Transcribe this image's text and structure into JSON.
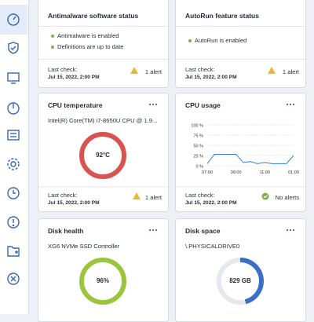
{
  "cards": [
    {
      "title": "Antimalware software status",
      "items": [
        "Antimalware is enabled",
        "Definitions are up to date"
      ],
      "footer": {
        "label": "Last check:",
        "date": "Jul 15, 2022, 2:00 PM",
        "status": "1 alert"
      }
    },
    {
      "title": "AutoRun feature status",
      "items": [
        "AutoRun is enabled"
      ],
      "footer": {
        "label": "Last check:",
        "date": "Jul 15, 2022, 2:00 PM",
        "status": "1 alert"
      }
    },
    {
      "title": "CPU temperature",
      "subtitle": "Intel(R) Core(TM) i7-8650U CPU @ 1.9...",
      "gauge": "92°C",
      "footer": {
        "label": "Last check:",
        "date": "Jul 15, 2022, 2:00 PM",
        "status": "1 alert"
      }
    },
    {
      "title": "CPU usage",
      "chart": {
        "type": "line",
        "color": "#3b7dd8",
        "grid": true,
        "categories": [
          "07:00",
          null,
          null,
          null,
          "09:00",
          null,
          null,
          null,
          "11:00",
          null,
          null,
          null,
          "01:00"
        ],
        "values": [
          5,
          28,
          28,
          28,
          28,
          8,
          10,
          5,
          8,
          5,
          5,
          5,
          25
        ],
        "ylim": [
          0,
          100
        ],
        "yticks": [
          {
            "value": 0,
            "label": "0 %"
          },
          {
            "value": 25,
            "label": "25 %"
          },
          {
            "value": 50,
            "label": "50 %"
          },
          {
            "value": 75,
            "label": "75 %"
          },
          {
            "value": 100,
            "label": "100 %"
          }
        ]
      },
      "footer": {
        "label": "Last check:",
        "date": "Jul 15, 2022, 2:00 PM",
        "status": "No alerts"
      }
    },
    {
      "title": "Disk health",
      "subtitle": "XG6 NVMe SSD Controller",
      "gauge": "96%"
    },
    {
      "title": "Disk space",
      "subtitle": "\\.PHYSICALDRIVE0",
      "gauge": "829 GB"
    }
  ]
}
